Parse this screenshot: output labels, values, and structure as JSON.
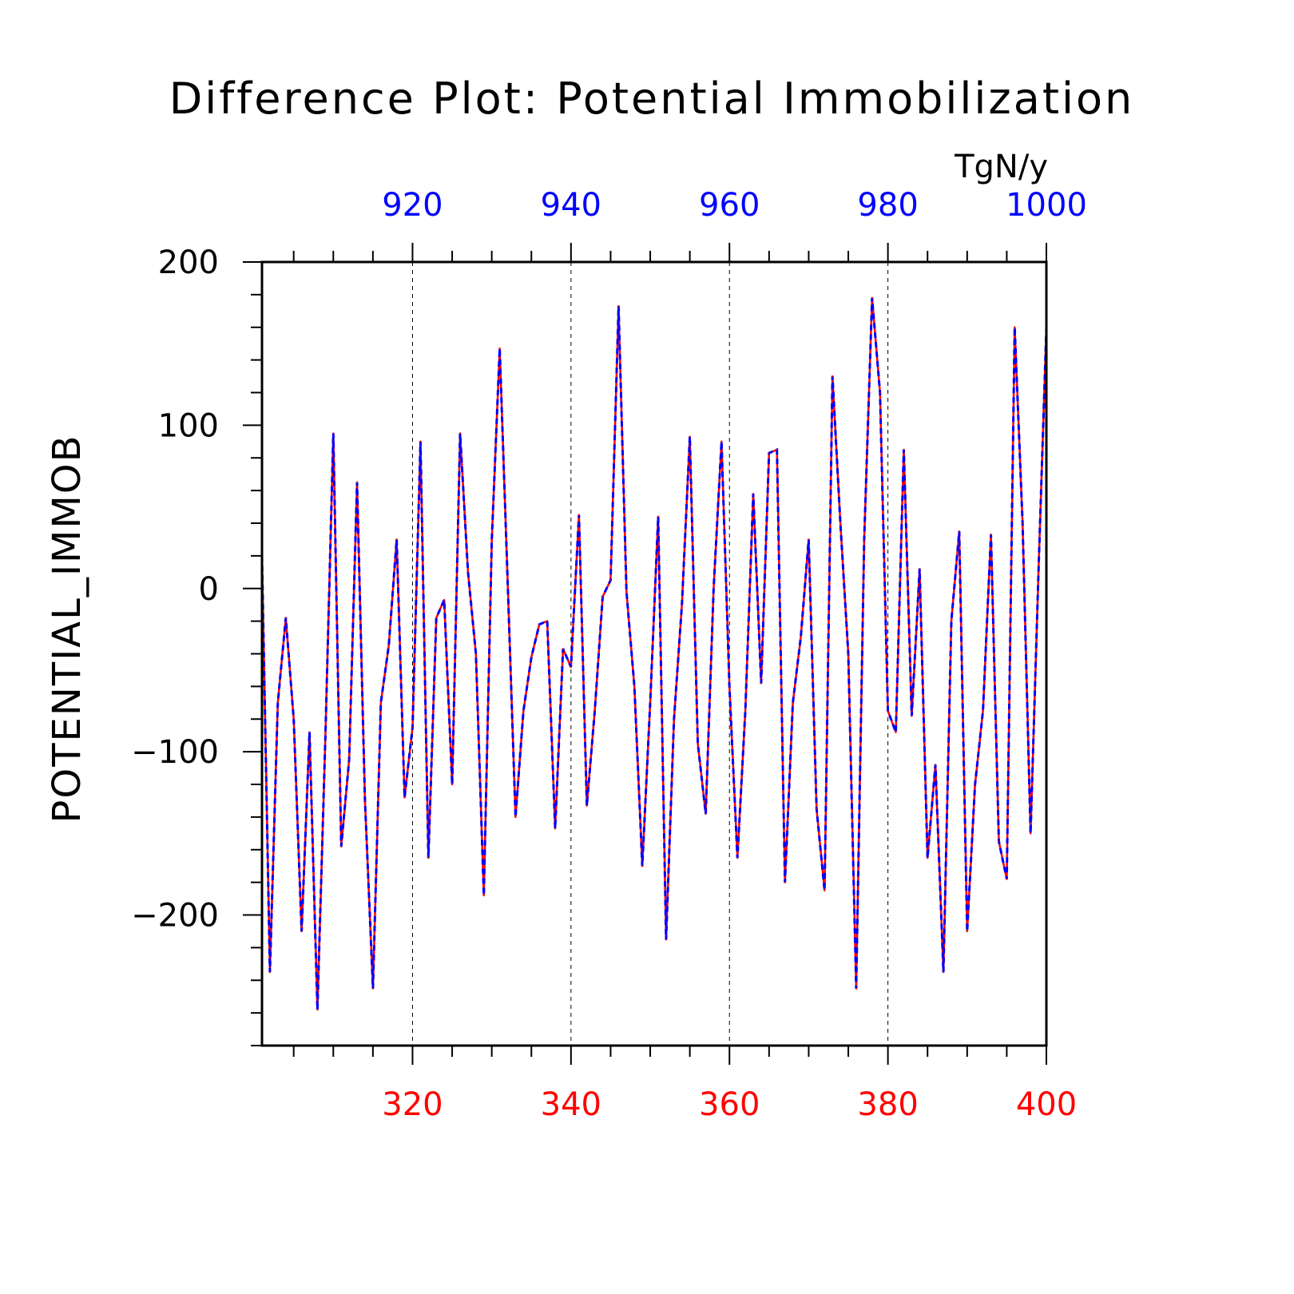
{
  "chart_data": {
    "type": "line",
    "title": "Difference Plot: Potential Immobilization",
    "units": "TgN/y",
    "ylabel": "POTENTIAL_IMMOB",
    "xlabel": "",
    "xlim": [
      301,
      400
    ],
    "ylim": [
      -280,
      200
    ],
    "top_xlim": [
      901,
      1000
    ],
    "yticks": [
      200,
      100,
      0,
      -100,
      -200
    ],
    "ytick_labels": [
      "200",
      "100",
      "0",
      "−100",
      "−200"
    ],
    "xticks_bottom": [
      320,
      340,
      360,
      380,
      400
    ],
    "xticks_bottom_labels": [
      "320",
      "340",
      "360",
      "380",
      "400"
    ],
    "xticks_top": [
      920,
      940,
      960,
      980,
      1000
    ],
    "xticks_top_labels": [
      "920",
      "940",
      "960",
      "980",
      "1000"
    ],
    "grid": "vertical dashed at major ticks",
    "colors": {
      "bottom_axis": "#ff0000",
      "top_axis": "#0000ff",
      "series_bottom": "#ff0000",
      "series_top": "#0000ff",
      "frame": "#000000"
    },
    "x": [
      301,
      302,
      303,
      304,
      305,
      306,
      307,
      308,
      309,
      310,
      311,
      312,
      313,
      314,
      315,
      316,
      317,
      318,
      319,
      320,
      321,
      322,
      323,
      324,
      325,
      326,
      327,
      328,
      329,
      330,
      331,
      332,
      333,
      334,
      335,
      336,
      337,
      338,
      339,
      340,
      341,
      342,
      343,
      344,
      345,
      346,
      347,
      348,
      349,
      350,
      351,
      352,
      353,
      354,
      355,
      356,
      357,
      358,
      359,
      360,
      361,
      362,
      363,
      364,
      365,
      366,
      367,
      368,
      369,
      370,
      371,
      372,
      373,
      374,
      375,
      376,
      377,
      378,
      379,
      380,
      381,
      382,
      383,
      384,
      385,
      386,
      387,
      388,
      389,
      390,
      391,
      392,
      393,
      394,
      395,
      396,
      397,
      398,
      399,
      400
    ],
    "series": [
      {
        "axis": "bottom",
        "values": [
          20,
          -235,
          -70,
          -18,
          -80,
          -210,
          -88,
          -258,
          -90,
          95,
          -158,
          -105,
          65,
          -130,
          -245,
          -70,
          -35,
          30,
          -128,
          -85,
          90,
          -165,
          -18,
          -7,
          -120,
          95,
          10,
          -40,
          -188,
          30,
          147,
          5,
          -140,
          -75,
          -42,
          -22,
          -20,
          -147,
          -37,
          -48,
          45,
          -133,
          -75,
          -5,
          5,
          173,
          -2,
          -60,
          -170,
          -70,
          44,
          -215,
          -80,
          -10,
          93,
          -95,
          -138,
          0,
          90,
          -60,
          -165,
          -75,
          58,
          -58,
          83,
          85,
          -180,
          -70,
          -30,
          30,
          -135,
          -185,
          130,
          40,
          -40,
          -245,
          30,
          178,
          120,
          -75,
          -88,
          85,
          -78,
          12,
          -165,
          -108,
          -235,
          -20,
          35,
          -210,
          -120,
          -75,
          33,
          -155,
          -178,
          160,
          40,
          -150,
          10,
          160
        ]
      },
      {
        "axis": "top",
        "values": [
          20,
          -235,
          -70,
          -18,
          -80,
          -210,
          -88,
          -258,
          -90,
          95,
          -158,
          -105,
          65,
          -130,
          -245,
          -70,
          -35,
          30,
          -128,
          -85,
          90,
          -165,
          -18,
          -7,
          -120,
          95,
          10,
          -40,
          -188,
          30,
          147,
          5,
          -140,
          -75,
          -42,
          -22,
          -20,
          -147,
          -37,
          -48,
          45,
          -133,
          -75,
          -5,
          5,
          173,
          -2,
          -60,
          -170,
          -70,
          44,
          -215,
          -80,
          -10,
          93,
          -95,
          -138,
          0,
          90,
          -60,
          -165,
          -75,
          58,
          -58,
          83,
          85,
          -180,
          -70,
          -30,
          30,
          -135,
          -185,
          130,
          40,
          -40,
          -245,
          30,
          178,
          120,
          -75,
          -88,
          85,
          -78,
          12,
          -165,
          -108,
          -235,
          -20,
          35,
          -210,
          -120,
          -75,
          33,
          -155,
          -178,
          160,
          40,
          -150,
          10,
          160
        ]
      }
    ]
  }
}
